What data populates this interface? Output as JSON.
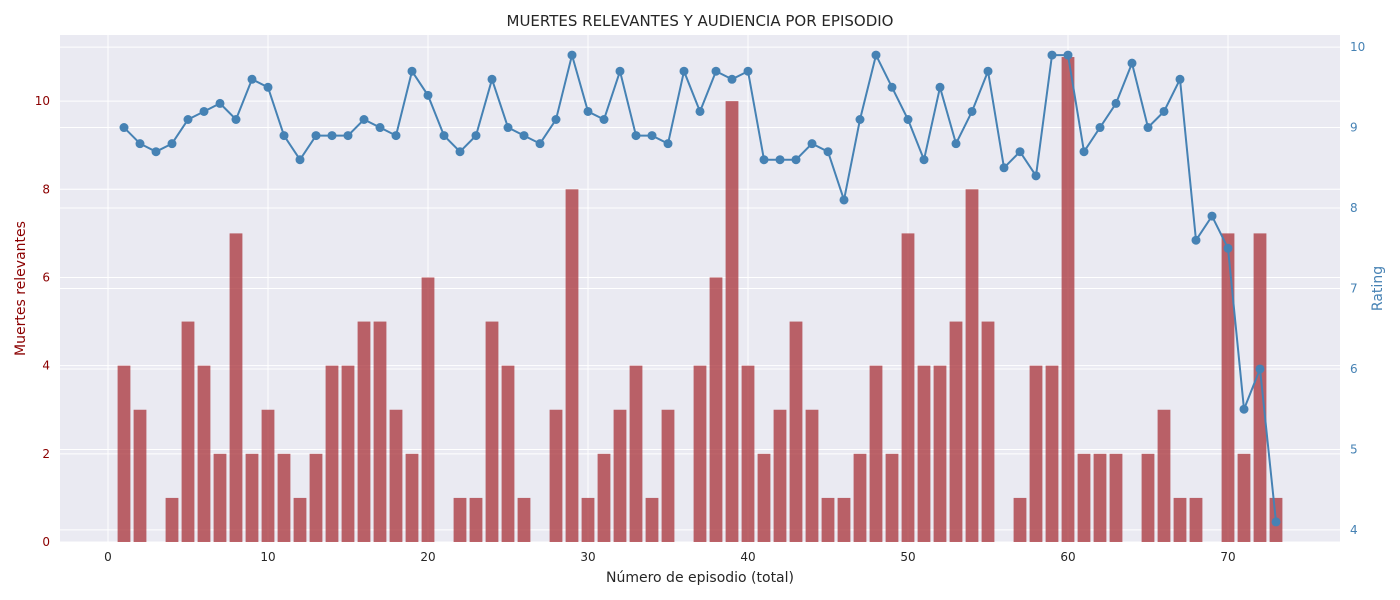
{
  "chart_data": {
    "type": "bar+line",
    "title": "MUERTES RELEVANTES Y AUDIENCIA POR EPISODIO",
    "xlabel": "Número de episodio (total)",
    "ylabel_left": "Muertes relevantes",
    "ylabel_right": "Rating",
    "xlim": [
      -3,
      77
    ],
    "ylim_left": [
      0,
      11.5
    ],
    "ylim_right": [
      3.85,
      10.15
    ],
    "x_ticks": [
      0,
      10,
      20,
      30,
      40,
      50,
      60,
      70
    ],
    "y_left_ticks": [
      0,
      2,
      4,
      6,
      8,
      10
    ],
    "y_right_ticks": [
      4,
      5,
      6,
      7,
      8,
      9,
      10
    ],
    "grid": true,
    "colors": {
      "bars": "#a83238",
      "line": "#4682b4",
      "left_axis": "#8b0000",
      "right_axis": "#4682b4",
      "background": "#eaeaf2",
      "grid": "#ffffff"
    },
    "episodes": [
      1,
      2,
      3,
      4,
      5,
      6,
      7,
      8,
      9,
      10,
      11,
      12,
      13,
      14,
      15,
      16,
      17,
      18,
      19,
      20,
      21,
      22,
      23,
      24,
      25,
      26,
      27,
      28,
      29,
      30,
      31,
      32,
      33,
      34,
      35,
      36,
      37,
      38,
      39,
      40,
      41,
      42,
      43,
      44,
      45,
      46,
      47,
      48,
      49,
      50,
      51,
      52,
      53,
      54,
      55,
      56,
      57,
      58,
      59,
      60,
      61,
      62,
      63,
      64,
      65,
      66,
      67,
      68,
      69,
      70,
      71,
      72,
      73
    ],
    "deaths": [
      4,
      3,
      0,
      1,
      5,
      4,
      2,
      7,
      2,
      3,
      2,
      1,
      2,
      4,
      4,
      5,
      5,
      3,
      2,
      6,
      0,
      1,
      1,
      5,
      4,
      1,
      0,
      3,
      8,
      1,
      2,
      3,
      4,
      1,
      3,
      0,
      4,
      6,
      10,
      4,
      2,
      3,
      5,
      3,
      1,
      1,
      2,
      4,
      2,
      7,
      4,
      4,
      5,
      8,
      5,
      0,
      1,
      4,
      4,
      11,
      2,
      2,
      2,
      0,
      2,
      3,
      1,
      1,
      0,
      7,
      2,
      7,
      1
    ],
    "ratings": [
      9.0,
      8.8,
      8.7,
      8.8,
      9.1,
      9.2,
      9.3,
      9.1,
      9.6,
      9.5,
      8.9,
      8.6,
      8.9,
      8.9,
      8.9,
      9.1,
      9.0,
      8.9,
      9.7,
      9.4,
      8.9,
      8.7,
      8.9,
      9.6,
      9.0,
      8.9,
      8.8,
      9.1,
      9.9,
      9.2,
      9.1,
      9.7,
      8.9,
      8.9,
      8.8,
      9.7,
      9.2,
      9.7,
      9.6,
      9.7,
      8.6,
      8.6,
      8.6,
      8.8,
      8.7,
      8.1,
      9.1,
      9.9,
      9.5,
      9.1,
      8.6,
      9.5,
      8.8,
      9.2,
      9.7,
      8.5,
      8.7,
      8.4,
      9.9,
      9.9,
      8.7,
      9.0,
      9.3,
      9.8,
      9.0,
      9.2,
      9.6,
      7.6,
      7.9,
      7.5,
      5.5,
      6.0,
      4.1
    ]
  }
}
